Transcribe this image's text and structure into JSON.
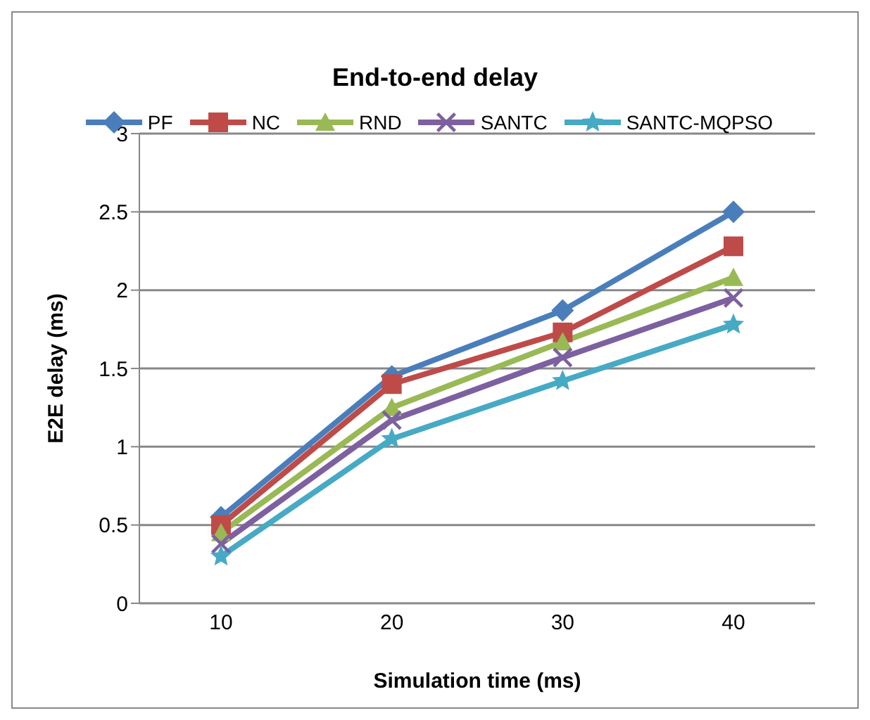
{
  "chart_data": {
    "type": "line",
    "title": "End-to-end delay",
    "xlabel": "Simulation time (ms)",
    "ylabel": "E2E delay (ms)",
    "categories": [
      "10",
      "20",
      "30",
      "40"
    ],
    "series": [
      {
        "name": "PF",
        "color": "#4a7ebb",
        "marker": "diamond",
        "values": [
          0.55,
          1.45,
          1.87,
          2.5
        ]
      },
      {
        "name": "NC",
        "color": "#be4b48",
        "marker": "square",
        "values": [
          0.5,
          1.4,
          1.73,
          2.28
        ]
      },
      {
        "name": "RND",
        "color": "#98b954",
        "marker": "triangle",
        "values": [
          0.45,
          1.25,
          1.67,
          2.08
        ]
      },
      {
        "name": "SANTC",
        "color": "#7d60a0",
        "marker": "cross",
        "values": [
          0.38,
          1.17,
          1.57,
          1.95
        ]
      },
      {
        "name": "SANTC-MQPSO",
        "color": "#46aac5",
        "marker": "star",
        "values": [
          0.3,
          1.05,
          1.42,
          1.78
        ]
      }
    ],
    "ylim": [
      0,
      3
    ],
    "yticks": [
      0,
      0.5,
      1,
      1.5,
      2,
      2.5,
      3
    ],
    "grid": "y",
    "legend": "top",
    "line_style": "solid"
  }
}
